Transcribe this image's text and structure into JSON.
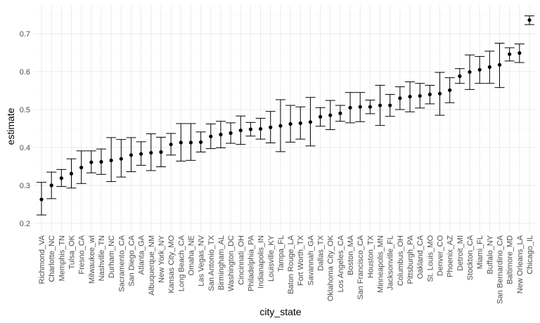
{
  "chart_data": {
    "type": "scatter",
    "xlabel": "city_state",
    "ylabel": "estimate",
    "ylim": [
      0.2,
      0.75
    ],
    "yticks": [
      "0.2",
      "0.3",
      "0.4",
      "0.5",
      "0.6",
      "0.7"
    ],
    "grid": true,
    "colors": {
      "point": "#000000",
      "grid_major": "#ebebeb",
      "grid_minor": "#f3f3f3",
      "background": "#ffffff"
    },
    "points": [
      {
        "city": "Richmond_VA",
        "estimate": 0.263,
        "low": 0.222,
        "high": 0.308
      },
      {
        "city": "Charlotte_NC",
        "estimate": 0.3,
        "low": 0.265,
        "high": 0.335
      },
      {
        "city": "Memphis_TN",
        "estimate": 0.319,
        "low": 0.297,
        "high": 0.342
      },
      {
        "city": "Tulsa_OK",
        "estimate": 0.331,
        "low": 0.293,
        "high": 0.37
      },
      {
        "city": "Fresno_CA",
        "estimate": 0.347,
        "low": 0.305,
        "high": 0.391
      },
      {
        "city": "Milwaukee_wI",
        "estimate": 0.361,
        "low": 0.333,
        "high": 0.391
      },
      {
        "city": "Nashville_TN",
        "estimate": 0.362,
        "low": 0.329,
        "high": 0.396
      },
      {
        "city": "Durham_NC",
        "estimate": 0.366,
        "low": 0.31,
        "high": 0.426
      },
      {
        "city": "Sacramento_CA",
        "estimate": 0.37,
        "low": 0.322,
        "high": 0.421
      },
      {
        "city": "San Diego_CA",
        "estimate": 0.38,
        "low": 0.336,
        "high": 0.426
      },
      {
        "city": "Atlanta_GA",
        "estimate": 0.383,
        "low": 0.353,
        "high": 0.415
      },
      {
        "city": "Albuquerque_NM",
        "estimate": 0.386,
        "low": 0.339,
        "high": 0.436
      },
      {
        "city": "New York_NY",
        "estimate": 0.388,
        "low": 0.349,
        "high": 0.427
      },
      {
        "city": "Kansas City_MO",
        "estimate": 0.408,
        "low": 0.38,
        "high": 0.437
      },
      {
        "city": "Long Beach_CA",
        "estimate": 0.413,
        "low": 0.364,
        "high": 0.463
      },
      {
        "city": "Omaha_NE",
        "estimate": 0.413,
        "low": 0.366,
        "high": 0.463
      },
      {
        "city": "Las Vegas_NV",
        "estimate": 0.414,
        "low": 0.388,
        "high": 0.441
      },
      {
        "city": "San Antonio_TX",
        "estimate": 0.429,
        "low": 0.397,
        "high": 0.462
      },
      {
        "city": "Birmingham_AL",
        "estimate": 0.434,
        "low": 0.399,
        "high": 0.469
      },
      {
        "city": "Washington_DC",
        "estimate": 0.438,
        "low": 0.411,
        "high": 0.465
      },
      {
        "city": "Cincinnati_OH",
        "estimate": 0.445,
        "low": 0.408,
        "high": 0.483
      },
      {
        "city": "Philadelphia_PA",
        "estimate": 0.448,
        "low": 0.43,
        "high": 0.466
      },
      {
        "city": "Indianapolis_IN",
        "estimate": 0.449,
        "low": 0.422,
        "high": 0.477
      },
      {
        "city": "Louisville_KY",
        "estimate": 0.453,
        "low": 0.412,
        "high": 0.495
      },
      {
        "city": "Tampa_FL",
        "estimate": 0.457,
        "low": 0.389,
        "high": 0.526
      },
      {
        "city": "Baton Rouge_LA",
        "estimate": 0.462,
        "low": 0.414,
        "high": 0.511
      },
      {
        "city": "Fort Worth_TX",
        "estimate": 0.464,
        "low": 0.422,
        "high": 0.507
      },
      {
        "city": "Savannah_GA",
        "estimate": 0.467,
        "low": 0.404,
        "high": 0.532
      },
      {
        "city": "Dallas_TX",
        "estimate": 0.481,
        "low": 0.456,
        "high": 0.505
      },
      {
        "city": "Oklahoma City_OK",
        "estimate": 0.485,
        "low": 0.447,
        "high": 0.524
      },
      {
        "city": "Los Angeles_CA",
        "estimate": 0.49,
        "low": 0.469,
        "high": 0.511
      },
      {
        "city": "Boston_MA",
        "estimate": 0.505,
        "low": 0.465,
        "high": 0.545
      },
      {
        "city": "San Francisco_CA",
        "estimate": 0.507,
        "low": 0.468,
        "high": 0.545
      },
      {
        "city": "Houston_TX",
        "estimate": 0.507,
        "low": 0.489,
        "high": 0.525
      },
      {
        "city": "Minneapolis_MN",
        "estimate": 0.511,
        "low": 0.458,
        "high": 0.564
      },
      {
        "city": "Jacksonville_FL",
        "estimate": 0.511,
        "low": 0.482,
        "high": 0.54
      },
      {
        "city": "Columbus_OH",
        "estimate": 0.53,
        "low": 0.5,
        "high": 0.56
      },
      {
        "city": "Pittsburgh_PA",
        "estimate": 0.534,
        "low": 0.494,
        "high": 0.573
      },
      {
        "city": "Oakland_CA",
        "estimate": 0.536,
        "low": 0.504,
        "high": 0.569
      },
      {
        "city": "St. Louis_MO",
        "estimate": 0.54,
        "low": 0.515,
        "high": 0.564
      },
      {
        "city": "Denver_CO",
        "estimate": 0.542,
        "low": 0.485,
        "high": 0.598
      },
      {
        "city": "Phoenix_AZ",
        "estimate": 0.551,
        "low": 0.518,
        "high": 0.584
      },
      {
        "city": "Detroit_MI",
        "estimate": 0.588,
        "low": 0.569,
        "high": 0.608
      },
      {
        "city": "Stockton_CA",
        "estimate": 0.599,
        "low": 0.553,
        "high": 0.644
      },
      {
        "city": "Miami_FL",
        "estimate": 0.605,
        "low": 0.569,
        "high": 0.64
      },
      {
        "city": "Buffalo_NY",
        "estimate": 0.612,
        "low": 0.569,
        "high": 0.654
      },
      {
        "city": "San Bernardino_CA",
        "estimate": 0.618,
        "low": 0.558,
        "high": 0.675
      },
      {
        "city": "Baltimore_MD",
        "estimate": 0.646,
        "low": 0.628,
        "high": 0.663
      },
      {
        "city": "New Orleans_LA",
        "estimate": 0.649,
        "low": 0.624,
        "high": 0.673
      },
      {
        "city": "Chicago_IL",
        "estimate": 0.736,
        "low": 0.724,
        "high": 0.747
      }
    ]
  }
}
